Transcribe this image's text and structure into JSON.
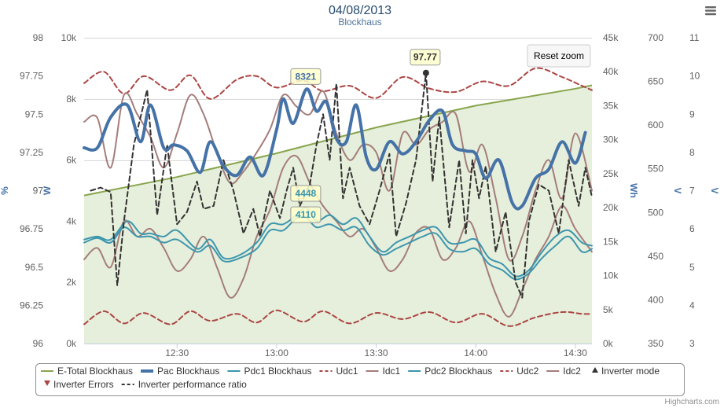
{
  "chart_data": {
    "type": "line",
    "title": "04/08/2013",
    "subtitle": "Blockhaus",
    "credits": "Highcharts.com",
    "reset_zoom_label": "Reset zoom",
    "menu_icon": "hamburger-menu-icon",
    "x_axis": {
      "type": "time",
      "min": "12:02",
      "max": "14:35",
      "ticks": [
        "12:30",
        "13:00",
        "13:30",
        "14:00",
        "14:30"
      ]
    },
    "y_axes": [
      {
        "id": "pct",
        "title": "%",
        "side": "left",
        "min": 96,
        "max": 98,
        "ticks": [
          "96",
          "96.25",
          "96.5",
          "96.75",
          "97",
          "97.25",
          "97.5",
          "97.75",
          "98"
        ]
      },
      {
        "id": "w",
        "title": "W",
        "side": "left",
        "min": 0,
        "max": 10000,
        "ticks": [
          "0k",
          "2k",
          "4k",
          "6k",
          "8k",
          "10k"
        ],
        "grid": true
      },
      {
        "id": "wh",
        "title": "Wh",
        "side": "right",
        "min": 0,
        "max": 45000,
        "ticks": [
          "0k",
          "5k",
          "10k",
          "15k",
          "20k",
          "25k",
          "30k",
          "35k",
          "40k",
          "45k"
        ]
      },
      {
        "id": "vdc",
        "title": "V",
        "side": "right",
        "min": 350,
        "max": 700,
        "ticks": [
          "350",
          "400",
          "450",
          "500",
          "550",
          "600",
          "650",
          "700"
        ]
      },
      {
        "id": "a",
        "title": "V",
        "side": "right",
        "min": 3,
        "max": 11,
        "ticks": [
          "3",
          "4",
          "5",
          "6",
          "7",
          "8",
          "9",
          "10",
          "11"
        ]
      }
    ],
    "series": [
      {
        "name": "E-Total Blockhaus",
        "type": "area",
        "axis": "wh",
        "color": "#89A54E",
        "fill": "#e6efdb",
        "dash": "solid",
        "width": 2,
        "x": [
          "12:02",
          "12:30",
          "13:00",
          "13:30",
          "14:00",
          "14:30",
          "14:35"
        ],
        "y": [
          21800,
          24500,
          28000,
          31800,
          35000,
          37500,
          38000
        ]
      },
      {
        "name": "Pac Blockhaus",
        "type": "spline",
        "axis": "w",
        "color": "#4572A7",
        "dash": "solid",
        "width": 4,
        "x": [
          "12:02",
          "12:06",
          "12:10",
          "12:15",
          "12:19",
          "12:22",
          "12:26",
          "12:29",
          "12:33",
          "12:37",
          "12:40",
          "12:44",
          "12:48",
          "12:52",
          "12:56",
          "13:00",
          "13:02",
          "13:05",
          "13:09",
          "13:12",
          "13:15",
          "13:18",
          "13:21",
          "13:24",
          "13:27",
          "13:30",
          "13:34",
          "13:38",
          "13:42",
          "13:46",
          "13:50",
          "13:53",
          "13:57",
          "14:00",
          "14:03",
          "14:07",
          "14:11",
          "14:14",
          "14:18",
          "14:22",
          "14:26",
          "14:30",
          "14:33"
        ],
        "y": [
          6400,
          6400,
          7400,
          7800,
          6600,
          7800,
          6400,
          6500,
          6300,
          5600,
          6600,
          5800,
          5500,
          6100,
          5500,
          7000,
          8000,
          7200,
          8321,
          7600,
          7900,
          6700,
          6600,
          7800,
          6100,
          5700,
          6600,
          6200,
          6600,
          7300,
          7600,
          6500,
          6300,
          6200,
          5400,
          6000,
          4600,
          4500,
          5400,
          5700,
          6600,
          5900,
          6900
        ]
      },
      {
        "name": "Pdc1 Blockhaus",
        "type": "spline",
        "axis": "w",
        "color": "#3D96AE",
        "dash": "solid",
        "width": 2,
        "x": [
          "12:02",
          "12:06",
          "12:10",
          "12:15",
          "12:19",
          "12:22",
          "12:26",
          "12:30",
          "12:36",
          "12:40",
          "12:44",
          "12:49",
          "12:54",
          "12:58",
          "13:02",
          "13:06",
          "13:09",
          "13:12",
          "13:16",
          "13:20",
          "13:24",
          "13:28",
          "13:32",
          "13:36",
          "13:40",
          "13:44",
          "13:48",
          "13:52",
          "13:56",
          "14:00",
          "14:04",
          "14:08",
          "14:12",
          "14:16",
          "14:20",
          "14:24",
          "14:28",
          "14:32",
          "14:35"
        ],
        "y": [
          3400,
          3500,
          3400,
          4000,
          3600,
          3600,
          3500,
          3700,
          3100,
          3400,
          2800,
          2900,
          3300,
          3900,
          3900,
          4200,
          4448,
          4000,
          4200,
          3900,
          4100,
          3500,
          3000,
          3300,
          3500,
          3700,
          3800,
          3300,
          3300,
          3400,
          2800,
          2600,
          2200,
          2400,
          3000,
          3500,
          3700,
          3300,
          3200
        ]
      },
      {
        "name": "Udc1",
        "type": "spline",
        "axis": "vdc",
        "color": "#AA4643",
        "dash": "dash",
        "width": 2,
        "x": [
          "12:02",
          "12:08",
          "12:14",
          "12:20",
          "12:28",
          "12:34",
          "12:40",
          "12:48",
          "12:54",
          "13:00",
          "13:08",
          "13:14",
          "13:22",
          "13:30",
          "13:38",
          "13:46",
          "13:54",
          "14:02",
          "14:10",
          "14:18",
          "14:26",
          "14:32",
          "14:35"
        ],
        "y": [
          648,
          661,
          636,
          656,
          640,
          657,
          630,
          652,
          656,
          643,
          651,
          639,
          645,
          631,
          655,
          642,
          638,
          650,
          645,
          665,
          655,
          645,
          640
        ]
      },
      {
        "name": "Idc1",
        "type": "spline",
        "axis": "a",
        "color": "#A47D7C",
        "dash": "solid",
        "width": 2,
        "x": [
          "12:02",
          "12:06",
          "12:10",
          "12:14",
          "12:18",
          "12:22",
          "12:26",
          "12:30",
          "12:34",
          "12:38",
          "12:42",
          "12:46",
          "12:50",
          "12:54",
          "12:58",
          "13:02",
          "13:06",
          "13:10",
          "13:14",
          "13:18",
          "13:22",
          "13:26",
          "13:30",
          "13:34",
          "13:38",
          "13:42",
          "13:46",
          "13:50",
          "13:54",
          "13:58",
          "14:02",
          "14:06",
          "14:10",
          "14:14",
          "14:18",
          "14:22",
          "14:26",
          "14:30",
          "14:35"
        ],
        "y": [
          8.8,
          8.9,
          7.6,
          9.5,
          9.0,
          8.4,
          7.6,
          8.5,
          9.5,
          9.0,
          8.0,
          7.2,
          7.5,
          8.0,
          8.6,
          9.5,
          9.2,
          9.0,
          9.6,
          8.5,
          7.8,
          8.2,
          8.0,
          7.0,
          8.5,
          8.2,
          8.6,
          8.8,
          9.0,
          7.5,
          8.2,
          6.8,
          5.2,
          5.8,
          7.0,
          7.8,
          6.8,
          8.5,
          7.0
        ]
      },
      {
        "name": "Pdc2 Blockhaus",
        "type": "spline",
        "axis": "w",
        "color": "#3D96AE",
        "dash": "solid",
        "width": 2,
        "x": [
          "12:02",
          "12:06",
          "12:10",
          "12:14",
          "12:18",
          "12:22",
          "12:26",
          "12:30",
          "12:36",
          "12:40",
          "12:44",
          "12:49",
          "12:54",
          "12:58",
          "13:02",
          "13:06",
          "13:09",
          "13:12",
          "13:16",
          "13:20",
          "13:24",
          "13:28",
          "13:32",
          "13:36",
          "13:40",
          "13:44",
          "13:48",
          "13:52",
          "13:56",
          "14:00",
          "14:04",
          "14:08",
          "14:12",
          "14:16",
          "14:20",
          "14:24",
          "14:28",
          "14:32",
          "14:35"
        ],
        "y": [
          3300,
          3450,
          3300,
          3800,
          3500,
          3500,
          3300,
          3400,
          3000,
          3200,
          2700,
          2800,
          3100,
          3700,
          3700,
          4100,
          4110,
          3800,
          3900,
          3700,
          3800,
          3200,
          2900,
          3100,
          3300,
          3500,
          3600,
          3100,
          3000,
          3100,
          2600,
          2400,
          2100,
          2300,
          2800,
          3200,
          3500,
          3000,
          3100
        ]
      },
      {
        "name": "Udc2",
        "type": "spline",
        "axis": "vdc",
        "color": "#AA4643",
        "dash": "dash",
        "width": 2,
        "x": [
          "12:02",
          "12:08",
          "12:14",
          "12:20",
          "12:28",
          "12:34",
          "12:40",
          "12:48",
          "12:54",
          "13:00",
          "13:08",
          "13:14",
          "13:22",
          "13:30",
          "13:38",
          "13:46",
          "13:54",
          "14:02",
          "14:10",
          "14:18",
          "14:26",
          "14:32",
          "14:35"
        ],
        "y": [
          372,
          387,
          373,
          385,
          372,
          387,
          376,
          384,
          374,
          388,
          375,
          387,
          373,
          385,
          378,
          386,
          374,
          384,
          370,
          380,
          386,
          384,
          384
        ]
      },
      {
        "name": "Idc2",
        "type": "spline",
        "axis": "a",
        "color": "#A47D7C",
        "dash": "solid",
        "width": 2,
        "x": [
          "12:02",
          "12:06",
          "12:10",
          "12:14",
          "12:18",
          "12:22",
          "12:26",
          "12:30",
          "12:34",
          "12:38",
          "12:42",
          "12:46",
          "12:50",
          "12:54",
          "12:58",
          "13:02",
          "13:06",
          "13:10",
          "13:14",
          "13:18",
          "13:22",
          "13:26",
          "13:30",
          "13:34",
          "13:38",
          "13:42",
          "13:46",
          "13:50",
          "13:54",
          "13:58",
          "14:02",
          "14:06",
          "14:10",
          "14:14",
          "14:18",
          "14:22",
          "14:26",
          "14:30",
          "14:35"
        ],
        "y": [
          5.2,
          5.5,
          5.0,
          6.2,
          5.8,
          6.0,
          5.5,
          4.9,
          5.2,
          5.8,
          5.0,
          4.2,
          4.7,
          5.8,
          6.5,
          7.6,
          7.9,
          7.2,
          6.6,
          6.2,
          5.8,
          6.0,
          5.5,
          4.9,
          5.2,
          5.9,
          6.0,
          5.2,
          5.5,
          6.2,
          5.3,
          4.3,
          3.7,
          4.4,
          5.2,
          5.8,
          6.6,
          6.0,
          5.4
        ]
      },
      {
        "name": "Inverter mode",
        "type": "scatter",
        "axis": "pct",
        "color": "#333333",
        "marker": "triangle-up",
        "x": [],
        "y": []
      },
      {
        "name": "Inverter Errors",
        "type": "scatter",
        "axis": "pct",
        "color": "#AA4643",
        "marker": "triangle-down",
        "x": [],
        "y": []
      },
      {
        "name": "Inverter performance ratio",
        "type": "line",
        "axis": "pct",
        "color": "#333333",
        "dash": "dash",
        "width": 2,
        "x": [
          "12:04",
          "12:07",
          "12:10",
          "12:12",
          "12:14",
          "12:17",
          "12:21",
          "12:24",
          "12:27",
          "12:30",
          "12:33",
          "12:36",
          "12:38",
          "12:41",
          "12:44",
          "12:47",
          "12:50",
          "12:53",
          "12:55",
          "12:58",
          "13:01",
          "13:03",
          "13:05",
          "13:07",
          "13:10",
          "13:12",
          "13:14",
          "13:16",
          "13:18",
          "13:20",
          "13:22",
          "13:25",
          "13:28",
          "13:31",
          "13:34",
          "13:36",
          "13:39",
          "13:42",
          "13:45",
          "13:47",
          "13:49",
          "13:52",
          "13:55",
          "13:57",
          "13:59",
          "14:01",
          "14:03",
          "14:06",
          "14:09",
          "14:12",
          "14:14",
          "14:16",
          "14:19",
          "14:22",
          "14:25",
          "14:28",
          "14:31",
          "14:33",
          "14:35"
        ],
        "y": [
          97.0,
          97.02,
          96.99,
          96.38,
          96.8,
          97.3,
          97.66,
          96.84,
          97.3,
          96.78,
          96.86,
          97.06,
          96.88,
          96.9,
          97.2,
          97.0,
          96.72,
          96.88,
          96.7,
          97.0,
          96.82,
          97.0,
          97.15,
          96.9,
          97.04,
          97.3,
          97.5,
          97.2,
          97.7,
          96.95,
          97.15,
          96.9,
          96.78,
          97.0,
          97.24,
          96.7,
          96.92,
          97.2,
          97.77,
          97.06,
          97.48,
          96.76,
          97.2,
          96.72,
          97.2,
          96.95,
          97.16,
          96.6,
          96.86,
          96.4,
          96.3,
          96.8,
          97.04,
          97.0,
          96.72,
          97.2,
          96.9,
          97.15,
          96.96
        ]
      }
    ],
    "data_labels": [
      {
        "series": "Pac Blockhaus",
        "x": "13:09",
        "y": 8321,
        "text": "8321"
      },
      {
        "series": "Pdc1 Blockhaus",
        "x": "13:09",
        "y": 4448,
        "text": "4448"
      },
      {
        "series": "Pdc2 Blockhaus",
        "x": "13:09",
        "y": 4110,
        "text": "4110"
      },
      {
        "series": "Inverter performance ratio",
        "x": "13:45",
        "y": 97.77,
        "text": "97.77"
      }
    ],
    "legend": {
      "placement": "bottom",
      "rows": [
        [
          "E-Total Blockhaus",
          "Pac Blockhaus",
          "Pdc1 Blockhaus",
          "Udc1",
          "Idc1",
          "Pdc2 Blockhaus",
          "Udc2",
          "Idc2",
          "Inverter mode"
        ],
        [
          "Inverter Errors",
          "Inverter performance ratio"
        ]
      ]
    }
  }
}
